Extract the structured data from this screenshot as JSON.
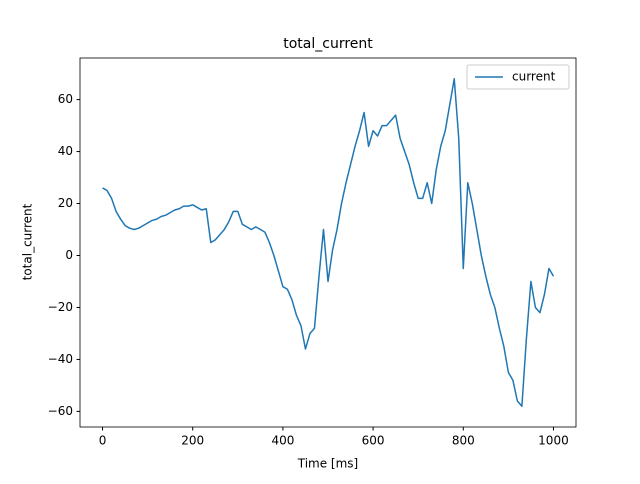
{
  "chart_data": {
    "type": "line",
    "title": "total_current",
    "x_label": "Time [ms]",
    "y_label": "total_current",
    "x": [
      0,
      10,
      20,
      30,
      40,
      50,
      60,
      70,
      80,
      90,
      100,
      110,
      120,
      130,
      140,
      150,
      160,
      170,
      180,
      190,
      200,
      210,
      220,
      230,
      240,
      250,
      260,
      270,
      280,
      290,
      300,
      310,
      320,
      330,
      340,
      350,
      360,
      370,
      380,
      390,
      400,
      410,
      420,
      430,
      440,
      450,
      460,
      470,
      480,
      490,
      500,
      510,
      520,
      530,
      540,
      550,
      560,
      570,
      580,
      590,
      600,
      610,
      620,
      630,
      640,
      650,
      660,
      670,
      680,
      690,
      700,
      710,
      720,
      730,
      740,
      750,
      760,
      770,
      780,
      790,
      800,
      810,
      820,
      830,
      840,
      850,
      860,
      870,
      880,
      890,
      900,
      910,
      920,
      930,
      940,
      950,
      960,
      970,
      980,
      990,
      1000
    ],
    "series": [
      {
        "name": "current",
        "color": "#1f77b4",
        "values": [
          26,
          25,
          22,
          17,
          14,
          11.5,
          10.5,
          10,
          10.5,
          11.5,
          12.5,
          13.5,
          14,
          15,
          15.5,
          16.5,
          17.5,
          18,
          19,
          19,
          19.5,
          18.5,
          17.5,
          18,
          5,
          6,
          8,
          10,
          13,
          17,
          17,
          12,
          11,
          10,
          11,
          10,
          9,
          5,
          0,
          -6,
          -12,
          -13,
          -17,
          -23,
          -27,
          -36,
          -30,
          -28,
          -8,
          10,
          -10,
          2,
          10,
          20,
          28,
          35,
          42,
          48,
          55,
          42,
          48,
          46,
          50,
          50,
          52,
          54,
          45,
          40,
          35,
          28,
          22,
          22,
          28,
          20,
          33,
          42,
          48,
          58,
          68,
          45,
          -5,
          28,
          20,
          10,
          0,
          -8,
          -15,
          -20,
          -28,
          -35,
          -45,
          -48,
          -56,
          -58,
          -32,
          -10,
          -20,
          -22,
          -15,
          -5,
          -8
        ]
      }
    ],
    "xlim": [
      -50,
      1050
    ],
    "ylim": [
      -66,
      76
    ],
    "xticks": [
      0,
      200,
      400,
      600,
      800,
      1000
    ],
    "yticks": [
      {
        "value": -60,
        "label": "−60"
      },
      {
        "value": -40,
        "label": "−40"
      },
      {
        "value": -20,
        "label": "−20"
      },
      0,
      20,
      40,
      60
    ],
    "legend": "upper right"
  }
}
